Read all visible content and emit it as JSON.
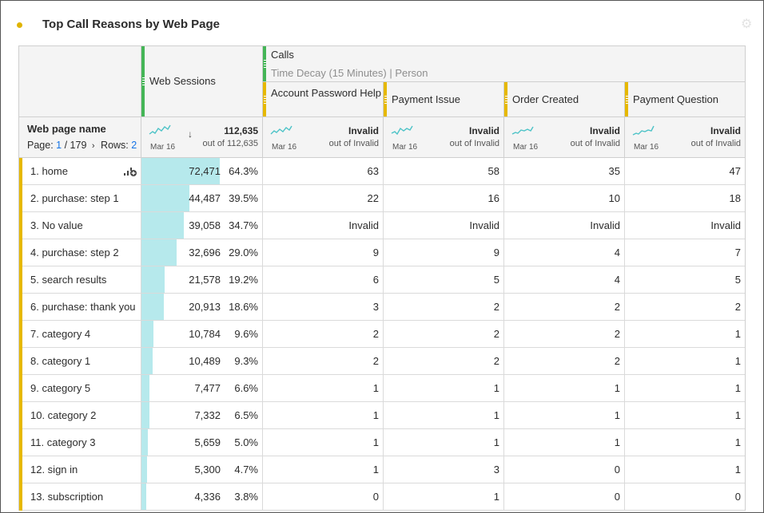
{
  "panel": {
    "title": "Top Call Reasons by Web Page",
    "gear_icon": "gear-icon"
  },
  "header": {
    "dimension_label": "Web page name",
    "page_prefix": "Page:",
    "page_current": "1",
    "page_total": "/ 179",
    "rows_label": "Rows:",
    "rows_value": "2",
    "web_sessions": "Web Sessions",
    "calls": "Calls",
    "calls_model": "Time Decay (15 Minutes) | Person",
    "reasons": [
      "Account Password Help",
      "Payment Issue",
      "Order Created",
      "Payment Question"
    ]
  },
  "summary": {
    "spark_date": "Mar 16",
    "web_sessions_total": "112,635",
    "web_sessions_out_of": "out of 112,635",
    "invalid": "Invalid",
    "out_of_invalid": "out of Invalid"
  },
  "rows": [
    {
      "label": "1. home",
      "sessions": "72,471",
      "pct": "64.3%",
      "fill": 0.643,
      "v": [
        "63",
        "58",
        "35",
        "47"
      ]
    },
    {
      "label": "2. purchase: step 1",
      "sessions": "44,487",
      "pct": "39.5%",
      "fill": 0.395,
      "v": [
        "22",
        "16",
        "10",
        "18"
      ]
    },
    {
      "label": "3. No value",
      "sessions": "39,058",
      "pct": "34.7%",
      "fill": 0.347,
      "v": [
        "Invalid",
        "Invalid",
        "Invalid",
        "Invalid"
      ]
    },
    {
      "label": "4. purchase: step 2",
      "sessions": "32,696",
      "pct": "29.0%",
      "fill": 0.29,
      "v": [
        "9",
        "9",
        "4",
        "7"
      ]
    },
    {
      "label": "5. search results",
      "sessions": "21,578",
      "pct": "19.2%",
      "fill": 0.192,
      "v": [
        "6",
        "5",
        "4",
        "5"
      ]
    },
    {
      "label": "6. purchase: thank you",
      "sessions": "20,913",
      "pct": "18.6%",
      "fill": 0.186,
      "v": [
        "3",
        "2",
        "2",
        "2"
      ]
    },
    {
      "label": "7. category 4",
      "sessions": "10,784",
      "pct": "9.6%",
      "fill": 0.096,
      "v": [
        "2",
        "2",
        "2",
        "1"
      ]
    },
    {
      "label": "8. category 1",
      "sessions": "10,489",
      "pct": "9.3%",
      "fill": 0.093,
      "v": [
        "2",
        "2",
        "2",
        "1"
      ]
    },
    {
      "label": "9. category 5",
      "sessions": "7,477",
      "pct": "6.6%",
      "fill": 0.066,
      "v": [
        "1",
        "1",
        "1",
        "1"
      ]
    },
    {
      "label": "10. category 2",
      "sessions": "7,332",
      "pct": "6.5%",
      "fill": 0.065,
      "v": [
        "1",
        "1",
        "1",
        "1"
      ]
    },
    {
      "label": "11. category 3",
      "sessions": "5,659",
      "pct": "5.0%",
      "fill": 0.05,
      "v": [
        "1",
        "1",
        "1",
        "1"
      ]
    },
    {
      "label": "12. sign in",
      "sessions": "5,300",
      "pct": "4.7%",
      "fill": 0.047,
      "v": [
        "1",
        "3",
        "0",
        "1"
      ]
    },
    {
      "label": "13. subscription",
      "sessions": "4,336",
      "pct": "3.8%",
      "fill": 0.038,
      "v": [
        "0",
        "1",
        "0",
        "0"
      ]
    }
  ],
  "colors": {
    "accent_yellow": "#e6b800",
    "accent_green": "#44b556",
    "bar_fill": "#b6e9ec",
    "spark": "#4cc3c7",
    "link_blue": "#1473e6"
  }
}
